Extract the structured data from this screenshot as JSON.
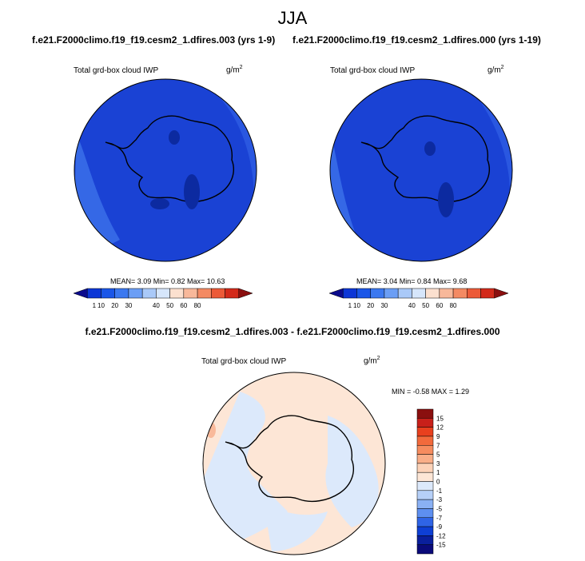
{
  "figure": {
    "season": "JJA",
    "case_title_test": "f.e21.F2000climo.f19_f19.cesm2_1.dfires.003 (yrs 1-9)",
    "case_title_ctrl": "f.e21.F2000climo.f19_f19.cesm2_1.dfires.000 (yrs 1-19)",
    "diff_title": "f.e21.F2000climo.f19_f19.cesm2_1.dfires.003 - f.e21.F2000climo.f19_f19.cesm2_1.dfires.000"
  },
  "panels": {
    "test": {
      "variable": "Total grd-box cloud IWP",
      "units": "g/m",
      "units_exp": "2",
      "stats_text": "MEAN=  3.09  Min=  0.82  Max=  10.63",
      "mean": 3.09,
      "min": 0.82,
      "max": 10.63
    },
    "ctrl": {
      "variable": "Total grd-box cloud IWP",
      "units": "g/m",
      "units_exp": "2",
      "stats_text": "MEAN=  3.04  Min=  0.84  Max=  9.68",
      "mean": 3.04,
      "min": 0.84,
      "max": 9.68
    },
    "diff": {
      "variable": "Total grd-box cloud IWP",
      "units": "g/m",
      "units_exp": "2",
      "stats_text": "MIN =  -0.58 MAX =   1.29",
      "min": -0.58,
      "max": 1.29
    }
  },
  "colorbar_field": {
    "labels": [
      "1",
      "10",
      "20",
      "30",
      "40",
      "50",
      "60",
      "80"
    ],
    "colors": [
      "#0b0b8c",
      "#0c36d6",
      "#1a56e8",
      "#3b78f0",
      "#6b9ef5",
      "#a9c9f8",
      "#d6e6fb",
      "#fbe0cf",
      "#f8b89a",
      "#f48a63",
      "#ec5a38",
      "#d32a1a",
      "#8a0f0f"
    ]
  },
  "colorbar_diff": {
    "labels": [
      "15",
      "12",
      "9",
      "7",
      "5",
      "3",
      "1",
      "0",
      "-1",
      "-3",
      "-5",
      "-7",
      "-9",
      "-12",
      "-15"
    ],
    "colors": [
      "#8a0f0f",
      "#c8201a",
      "#e8401e",
      "#f26a3c",
      "#f68c5f",
      "#f9ae88",
      "#fcd2b8",
      "#fde6d6",
      "#dce9fb",
      "#b6d0f8",
      "#8ab1f4",
      "#5e8ff0",
      "#2f64e6",
      "#0e3fd4",
      "#0a1f9c",
      "#0a0a7a"
    ]
  },
  "colors": {
    "ocean_test": "#1a42d4",
    "ocean_deep": "#0c2aa0",
    "ocean_edge": "#3568e6",
    "diff_pos": "#fde6d6",
    "diff_neg": "#dce9fb",
    "coast": "#000000"
  }
}
